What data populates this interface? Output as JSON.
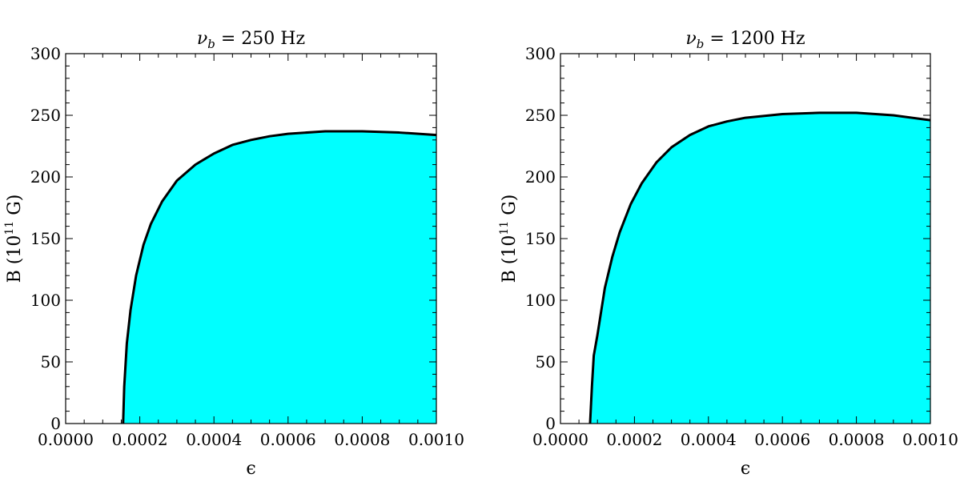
{
  "colors": {
    "region_fill": "#00FFFF",
    "boundary": "#000000"
  },
  "chart_data": [
    {
      "type": "area",
      "title": "ν_b = 250 Hz",
      "title_parts": {
        "symbol": "ν",
        "subscript": "b",
        "rest": " = 250 Hz"
      },
      "xlabel": "ϵ",
      "ylabel_parts": {
        "prefix": "B (10",
        "exponent": "11",
        "suffix": " G)"
      },
      "xlim": [
        0,
        0.001
      ],
      "ylim": [
        0,
        300
      ],
      "xticks": [
        0,
        0.0002,
        0.0004,
        0.0006,
        0.0008,
        0.001
      ],
      "xtick_labels": [
        "0.0000",
        "0.0002",
        "0.0004",
        "0.0006",
        "0.0008",
        "0.0010"
      ],
      "yticks": [
        0,
        50,
        100,
        150,
        200,
        250,
        300
      ],
      "ytick_labels": [
        "0",
        "50",
        "100",
        "150",
        "200",
        "250",
        "300"
      ],
      "grid": false,
      "boundary_curve": {
        "x": [
          0.000155,
          0.000158,
          0.000165,
          0.000175,
          0.00019,
          0.00021,
          0.00023,
          0.00026,
          0.0003,
          0.00035,
          0.0004,
          0.00045,
          0.0005,
          0.00055,
          0.0006,
          0.0007,
          0.0008,
          0.0009,
          0.001
        ],
        "y": [
          0,
          30,
          65,
          92,
          120,
          145,
          162,
          180,
          197,
          210,
          219,
          226,
          230,
          233,
          235,
          237,
          237,
          236,
          234
        ]
      }
    },
    {
      "type": "area",
      "title": "ν_b = 1200 Hz",
      "title_parts": {
        "symbol": "ν",
        "subscript": "b",
        "rest": " = 1200 Hz"
      },
      "xlabel": "ϵ",
      "ylabel_parts": {
        "prefix": "B (10",
        "exponent": "11",
        "suffix": " G)"
      },
      "xlim": [
        0,
        0.001
      ],
      "ylim": [
        0,
        300
      ],
      "xticks": [
        0,
        0.0002,
        0.0004,
        0.0006,
        0.0008,
        0.001
      ],
      "xtick_labels": [
        "0.0000",
        "0.0002",
        "0.0004",
        "0.0006",
        "0.0008",
        "0.0010"
      ],
      "yticks": [
        0,
        50,
        100,
        150,
        200,
        250,
        300
      ],
      "ytick_labels": [
        "0",
        "50",
        "100",
        "150",
        "200",
        "250",
        "300"
      ],
      "grid": false,
      "boundary_curve": {
        "x": [
          8e-05,
          8.5e-05,
          9e-05,
          0.0001,
          0.00012,
          0.00014,
          0.00016,
          0.00019,
          0.00022,
          0.00026,
          0.0003,
          0.00035,
          0.0004,
          0.00045,
          0.0005,
          0.0006,
          0.0007,
          0.00075,
          0.0008,
          0.0009,
          0.001
        ],
        "y": [
          0,
          30,
          55,
          72,
          110,
          135,
          155,
          178,
          195,
          212,
          224,
          234,
          241,
          245,
          248,
          251,
          252,
          252,
          252,
          250,
          246
        ]
      }
    }
  ]
}
